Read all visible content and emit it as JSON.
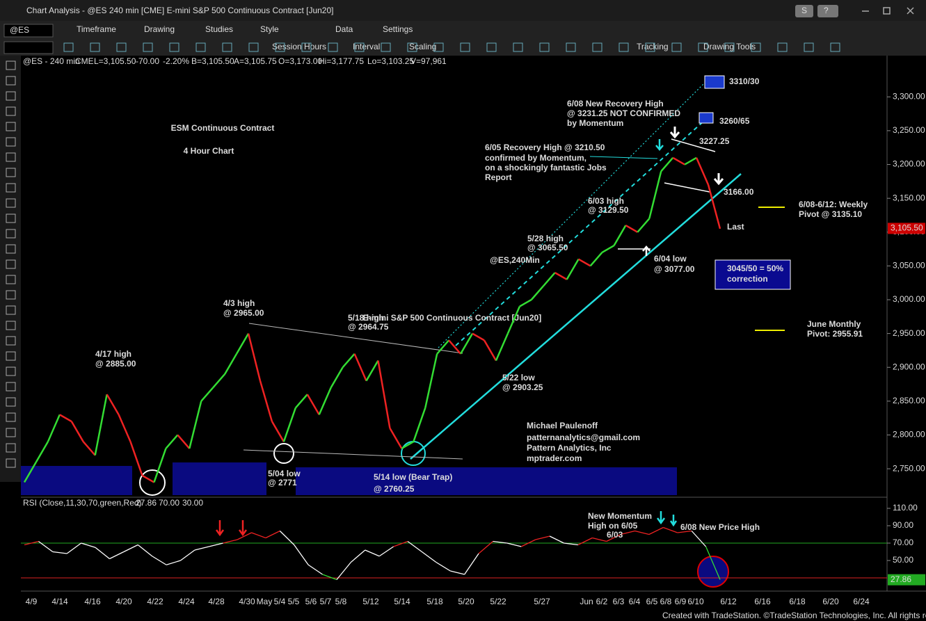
{
  "window": {
    "title": "Chart Analysis - @ES 240 min [CME] E-mini S&P 500 Continuous Contract [Jun20]",
    "buttons": [
      "S",
      "?"
    ]
  },
  "toolbar": {
    "symbol": "@ES",
    "row1": [
      "Timeframe",
      "Drawing",
      "Studies",
      "Style",
      "Data",
      "Settings"
    ],
    "row2": [
      "Session Hours",
      "Interval",
      "Scaling",
      "Tracking",
      "Drawing Tools"
    ]
  },
  "status_line": [
    "@ES - 240 min",
    "CME",
    "L=3,105.50",
    "-70.00",
    "-2.20%",
    "B=3,105.50",
    "A=3,105.75",
    "O=3,173.00",
    "Hi=3,177.75",
    "Lo=3,103.25",
    "V=97,961"
  ],
  "watermark": [
    "@ES,240Min",
    "E-mini S&P 500 Continuous Contract [Jun20]"
  ],
  "chart_data": [
    {
      "type": "line",
      "values": [
        2730,
        2760,
        2790,
        2830,
        2820,
        2790,
        2770,
        2860,
        2830,
        2790,
        2740,
        2730,
        2780,
        2800,
        2780,
        2850,
        2870,
        2890,
        2920,
        2950,
        2880,
        2820,
        2790,
        2840,
        2860,
        2830,
        2870,
        2900,
        2920,
        2880,
        2910,
        2810,
        2780,
        2790,
        2840,
        2920,
        2940,
        2920,
        2950,
        2940,
        2910,
        2950,
        2990,
        3000,
        3020,
        3040,
        3030,
        3060,
        3050,
        3070,
        3080,
        3110,
        3100,
        3120,
        3190,
        3210,
        3200,
        3210,
        3170,
        3105
      ],
      "ylim": [
        2711,
        3361
      ],
      "yticks": [
        {
          "value": 2750,
          "label": "2,750.00"
        },
        {
          "value": 2800,
          "label": "2,800.00"
        },
        {
          "value": 2850,
          "label": "2,850.00"
        },
        {
          "value": 2900,
          "label": "2,900.00"
        },
        {
          "value": 2950,
          "label": "2,950.00"
        },
        {
          "value": 3000,
          "label": "3,000.00"
        },
        {
          "value": 3050,
          "label": "3,050.00"
        },
        {
          "value": 3100,
          "label": "3,100.00"
        },
        {
          "value": 3150,
          "label": "3,150.00"
        },
        {
          "value": 3200,
          "label": "3,200.00"
        },
        {
          "value": 3250,
          "label": "3,250.00"
        },
        {
          "value": 3300,
          "label": "3,300.00"
        }
      ],
      "last": {
        "value": 3105.5,
        "label": "3,105.50"
      }
    },
    {
      "type": "line",
      "legend": [
        "RSI (Close,11,30,70,green,Red)",
        "27.86",
        "70.00",
        "30.00"
      ],
      "values": [
        68,
        72,
        60,
        58,
        70,
        65,
        52,
        60,
        68,
        55,
        45,
        50,
        62,
        66,
        70,
        74,
        82,
        76,
        84,
        68,
        45,
        34,
        28,
        48,
        62,
        55,
        66,
        72,
        60,
        48,
        38,
        34,
        58,
        72,
        70,
        66,
        74,
        78,
        70,
        68,
        76,
        72,
        80,
        84,
        80,
        88,
        82,
        84,
        66,
        28
      ],
      "ylim": [
        16.4,
        120.4
      ],
      "yticks": [
        {
          "value": 50,
          "label": "50.00"
        },
        {
          "value": 70,
          "label": "70.00"
        },
        {
          "value": 90,
          "label": "90.00"
        },
        {
          "value": 110,
          "label": "110.00"
        }
      ],
      "levels": [
        70,
        30
      ],
      "last": {
        "value": 27.86,
        "label": "27.86"
      }
    }
  ],
  "date_axis": [
    "4/9",
    "4/14",
    "4/16",
    "4/20",
    "4/22",
    "4/24",
    "4/28",
    "4/30",
    "May",
    "5/4",
    "5/5",
    "5/6",
    "5/7",
    "5/8",
    "5/12",
    "5/14",
    "5/18",
    "5/20",
    "5/22",
    "5/27",
    "Jun",
    "6/2",
    "6/3",
    "6/4",
    "6/5",
    "6/8",
    "6/9",
    "6/10",
    "6/12",
    "6/16",
    "6/18",
    "6/20",
    "6/24"
  ],
  "annotations": [
    "ESM Continuous Contract",
    "4 Hour Chart",
    "4/3 high",
    "@ 2965.00",
    "5/18 high",
    "@ 2964.75",
    "4/17 high",
    "@ 2885.00",
    "5/04 low",
    "@ 2771",
    "5/14 low (Bear Trap)",
    "@ 2760.25",
    "5/22 low",
    "@ 2903.25",
    "5/28 high",
    "@ 3065.50",
    "6/03 high",
    "@ 3129.50",
    "6/04 low",
    "@ 3077.00",
    "6/05 Recovery High @ 3210.50",
    "confirmed by Momentum,",
    "on a shockingly fantastic Jobs",
    "Report",
    "6/08 New Recovery High",
    "@ 3231.25 NOT CONFIRMED",
    "by Momentum",
    "3310/30",
    "3260/65",
    "3227.25",
    "3166.00",
    "Last",
    "6/08-6/12: Weekly",
    "Pivot @ 3135.10",
    "3045/50 = 50%",
    "correction",
    "June Monthly",
    "Pivot: 2955.91",
    "Michael Paulenoff",
    "patternanalytics@gmail.com",
    "Pattern Analytics, Inc",
    "mptrader.com",
    "New Momentum",
    "High on 6/05",
    "6/03",
    "6/08 New Price High"
  ],
  "footer": "Created with TradeStation. ©TradeStation Technologies, Inc. All rights reserved."
}
